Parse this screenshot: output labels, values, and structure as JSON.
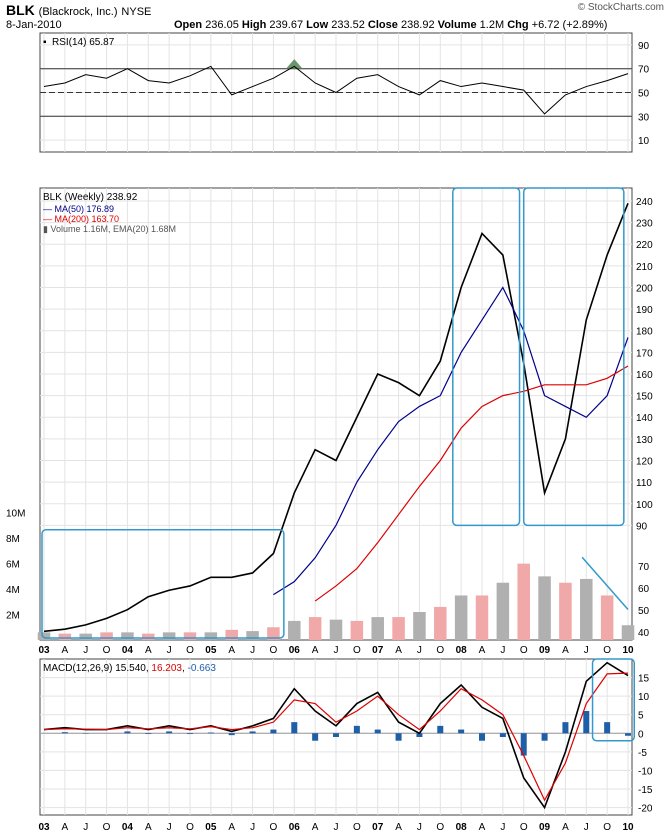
{
  "header": {
    "symbol": "BLK",
    "company": "(Blackrock, Inc.)",
    "exchange": "NYSE",
    "date": "8-Jan-2010",
    "open_label": "Open",
    "open": "236.05",
    "high_label": "High",
    "high": "239.67",
    "low_label": "Low",
    "low": "233.52",
    "close_label": "Close",
    "close": "238.92",
    "volume_label": "Volume",
    "volume": "1.2M",
    "chg_label": "Chg",
    "chg": "+6.72 (+2.89%)",
    "watermark": "© StockCharts.com"
  },
  "chart_data": [
    {
      "type": "line",
      "panel": "rsi",
      "legend": "RSI(14) 65.87",
      "ylim": [
        0,
        100
      ],
      "yticks": [
        10,
        30,
        50,
        70,
        90
      ],
      "reference_lines": [
        30,
        50,
        70
      ],
      "x": [
        "2003-01",
        "2003-04",
        "2003-07",
        "2003-10",
        "2004-01",
        "2004-04",
        "2004-07",
        "2004-10",
        "2005-01",
        "2005-04",
        "2005-07",
        "2005-10",
        "2006-01",
        "2006-04",
        "2006-07",
        "2006-10",
        "2007-01",
        "2007-04",
        "2007-07",
        "2007-10",
        "2008-01",
        "2008-04",
        "2008-07",
        "2008-10",
        "2009-01",
        "2009-04",
        "2009-07",
        "2009-10",
        "2010-01"
      ],
      "values": [
        55,
        58,
        65,
        62,
        70,
        60,
        58,
        64,
        72,
        48,
        55,
        62,
        72,
        58,
        50,
        62,
        65,
        55,
        48,
        60,
        55,
        58,
        55,
        52,
        32,
        48,
        55,
        60,
        65.87
      ],
      "color": "#000000"
    },
    {
      "type": "line",
      "panel": "price",
      "title": "BLK (Weekly) 238.92",
      "ylim": [
        37,
        246
      ],
      "yticks": [
        90,
        100,
        110,
        120,
        130,
        140,
        150,
        160,
        170,
        180,
        190,
        200,
        210,
        220,
        230,
        240
      ],
      "volume_ticks": [
        "2M",
        "4M",
        "6M",
        "8M",
        "10M"
      ],
      "volume_axis_right": [
        40,
        50,
        60,
        70
      ],
      "grid": true,
      "x": [
        "2003-01",
        "2003-04",
        "2003-07",
        "2003-10",
        "2004-01",
        "2004-04",
        "2004-07",
        "2004-10",
        "2005-01",
        "2005-04",
        "2005-07",
        "2005-10",
        "2006-01",
        "2006-04",
        "2006-07",
        "2006-10",
        "2007-01",
        "2007-04",
        "2007-07",
        "2007-10",
        "2008-01",
        "2008-04",
        "2008-07",
        "2008-10",
        "2009-01",
        "2009-04",
        "2009-07",
        "2009-10",
        "2010-01"
      ],
      "series": [
        {
          "name": "BLK (Weekly) 238.92",
          "color": "#000000",
          "values": [
            41,
            42,
            44,
            47,
            51,
            57,
            60,
            62,
            66,
            66,
            68,
            77,
            105,
            125,
            120,
            140,
            160,
            156,
            150,
            166,
            200,
            225,
            215,
            165,
            105,
            130,
            185,
            215,
            238.92
          ]
        },
        {
          "name": "MA(50) 176.89",
          "color": "#00008b",
          "values": [
            null,
            null,
            null,
            null,
            null,
            null,
            null,
            null,
            null,
            null,
            null,
            58,
            64,
            75,
            90,
            110,
            125,
            138,
            145,
            150,
            170,
            185,
            200,
            180,
            150,
            145,
            140,
            150,
            176.89
          ]
        },
        {
          "name": "MA(200) 163.70",
          "color": "#dd0000",
          "values": [
            null,
            null,
            null,
            null,
            null,
            null,
            null,
            null,
            null,
            null,
            null,
            null,
            null,
            55,
            62,
            70,
            82,
            95,
            108,
            120,
            135,
            145,
            150,
            152,
            155,
            155,
            155,
            158,
            163.7
          ]
        }
      ],
      "volume": {
        "legend": "Volume 1.16M, EMA(20) 1.68M",
        "values_M": [
          0.6,
          0.5,
          0.5,
          0.6,
          0.6,
          0.5,
          0.6,
          0.6,
          0.6,
          0.8,
          0.7,
          1.0,
          1.5,
          1.8,
          1.6,
          1.5,
          1.8,
          1.8,
          2.2,
          2.6,
          3.5,
          3.5,
          4.5,
          6.0,
          5.0,
          4.5,
          4.8,
          3.5,
          1.16
        ]
      },
      "annotations": [
        "box 2003-2005 consolidation",
        "box 2008 top",
        "box 2009 recovery",
        "downtrend line on volume"
      ]
    },
    {
      "type": "line",
      "panel": "macd",
      "legend": "MACD(12,26,9)",
      "legend_macd": "15.540",
      "legend_signal": "16.203",
      "legend_hist": "-0.663",
      "ylim": [
        -22,
        20
      ],
      "yticks": [
        -20,
        -15,
        -10,
        -5,
        0,
        5,
        10,
        15
      ],
      "x": [
        "2003-01",
        "2003-04",
        "2003-07",
        "2003-10",
        "2004-01",
        "2004-04",
        "2004-07",
        "2004-10",
        "2005-01",
        "2005-04",
        "2005-07",
        "2005-10",
        "2006-01",
        "2006-04",
        "2006-07",
        "2006-10",
        "2007-01",
        "2007-04",
        "2007-07",
        "2007-10",
        "2008-01",
        "2008-04",
        "2008-07",
        "2008-10",
        "2009-01",
        "2009-04",
        "2009-07",
        "2009-10",
        "2010-01"
      ],
      "series": [
        {
          "name": "MACD",
          "color": "#000000",
          "values": [
            1,
            1.5,
            1,
            1,
            2,
            1,
            2,
            1,
            2,
            0.5,
            2,
            4,
            12,
            6,
            2,
            8,
            11,
            3,
            0,
            8,
            13,
            7,
            4,
            -12,
            -20,
            -5,
            14,
            19,
            15.54
          ]
        },
        {
          "name": "Signal",
          "color": "#dd0000",
          "values": [
            1,
            1.2,
            1.1,
            1,
            1.5,
            1.2,
            1.5,
            1.2,
            1.8,
            1,
            1.5,
            3,
            9,
            8,
            3,
            6,
            10,
            5,
            1,
            6,
            12,
            9,
            5,
            -6,
            -18,
            -8,
            8,
            16,
            16.203
          ]
        }
      ],
      "x_tick_labels": [
        "03",
        "A",
        "J",
        "O",
        "04",
        "A",
        "J",
        "O",
        "05",
        "A",
        "J",
        "O",
        "06",
        "A",
        "J",
        "O",
        "07",
        "A",
        "J",
        "O",
        "08",
        "A",
        "J",
        "O",
        "09",
        "A",
        "J",
        "O",
        "10"
      ]
    }
  ]
}
